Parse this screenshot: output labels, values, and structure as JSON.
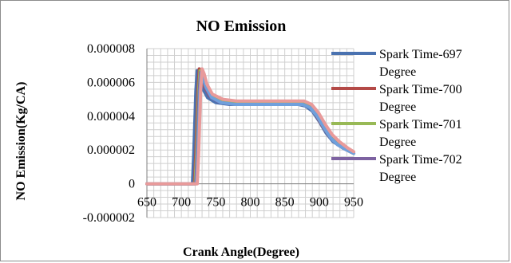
{
  "chart_data": {
    "type": "line",
    "title": "NO Emission",
    "xlabel": "Crank Angle(Degree)",
    "ylabel": "NO Emission(Kg/CA)",
    "xlim": [
      650,
      950
    ],
    "ylim": [
      -2e-06,
      8e-06
    ],
    "x_ticks": [
      "650",
      "700",
      "750",
      "800",
      "850",
      "900",
      "950"
    ],
    "y_ticks": [
      "-0.000002",
      "0",
      "0.000002",
      "0.000004",
      "0.000006",
      "0.000008"
    ],
    "grid": true,
    "legend_position": "right",
    "series": [
      {
        "name": "Spark Time-697 Degree",
        "color": "#4a72b0",
        "points": [
          [
            650,
            0
          ],
          [
            716,
            0
          ],
          [
            718,
            1.8e-06
          ],
          [
            721,
            5.5e-06
          ],
          [
            723,
            6.7e-06
          ],
          [
            726,
            6.3e-06
          ],
          [
            730,
            5.7e-06
          ],
          [
            738,
            5.1e-06
          ],
          [
            750,
            4.8e-06
          ],
          [
            770,
            4.7e-06
          ],
          [
            800,
            4.7e-06
          ],
          [
            840,
            4.7e-06
          ],
          [
            870,
            4.7e-06
          ],
          [
            880,
            4.6e-06
          ],
          [
            890,
            4.3e-06
          ],
          [
            900,
            3.7e-06
          ],
          [
            910,
            3e-06
          ],
          [
            920,
            2.5e-06
          ],
          [
            935,
            2.1e-06
          ],
          [
            950,
            1.8e-06
          ]
        ]
      },
      {
        "name": "Spark Time-700 Degree",
        "color": "#b44a47",
        "points": [
          [
            650,
            0
          ],
          [
            719,
            0
          ],
          [
            721,
            1.8e-06
          ],
          [
            724,
            5.5e-06
          ],
          [
            726,
            6.8e-06
          ],
          [
            729,
            6.4e-06
          ],
          [
            733,
            5.8e-06
          ],
          [
            741,
            5.2e-06
          ],
          [
            755,
            4.9e-06
          ],
          [
            775,
            4.8e-06
          ],
          [
            800,
            4.8e-06
          ],
          [
            840,
            4.8e-06
          ],
          [
            875,
            4.8e-06
          ],
          [
            885,
            4.6e-06
          ],
          [
            895,
            4.1e-06
          ],
          [
            905,
            3.4e-06
          ],
          [
            915,
            2.8e-06
          ],
          [
            925,
            2.4e-06
          ],
          [
            940,
            2e-06
          ],
          [
            950,
            1.8e-06
          ]
        ]
      },
      {
        "name": "Spark Time-701 Degree",
        "color": "#98b956",
        "points": [
          [
            650,
            0
          ],
          [
            720,
            0
          ],
          [
            722,
            1.8e-06
          ],
          [
            725,
            5.5e-06
          ],
          [
            727,
            6.7e-06
          ],
          [
            730,
            6.3e-06
          ],
          [
            734,
            5.8e-06
          ],
          [
            742,
            5.2e-06
          ],
          [
            756,
            4.9e-06
          ],
          [
            776,
            4.8e-06
          ],
          [
            800,
            4.8e-06
          ],
          [
            840,
            4.8e-06
          ],
          [
            875,
            4.8e-06
          ],
          [
            886,
            4.6e-06
          ],
          [
            896,
            4.1e-06
          ],
          [
            906,
            3.4e-06
          ],
          [
            916,
            2.8e-06
          ],
          [
            926,
            2.4e-06
          ],
          [
            940,
            2e-06
          ],
          [
            950,
            1.8e-06
          ]
        ]
      },
      {
        "name": "Spark Time-702 Degree",
        "color": "#7d62a1",
        "points": [
          [
            650,
            0
          ],
          [
            721,
            0
          ],
          [
            723,
            1.8e-06
          ],
          [
            726,
            5.5e-06
          ],
          [
            728,
            6.6e-06
          ],
          [
            731,
            6.2e-06
          ],
          [
            735,
            5.7e-06
          ],
          [
            743,
            5.1e-06
          ],
          [
            757,
            4.8e-06
          ],
          [
            777,
            4.7e-06
          ],
          [
            800,
            4.7e-06
          ],
          [
            840,
            4.7e-06
          ],
          [
            876,
            4.7e-06
          ],
          [
            887,
            4.5e-06
          ],
          [
            897,
            4e-06
          ],
          [
            907,
            3.3e-06
          ],
          [
            917,
            2.7e-06
          ],
          [
            927,
            2.3e-06
          ],
          [
            940,
            2e-06
          ],
          [
            950,
            1.8e-06
          ]
        ]
      },
      {
        "name": "",
        "color": "#6fa0dc",
        "points": [
          [
            650,
            0
          ],
          [
            722,
            0
          ],
          [
            724,
            1.8e-06
          ],
          [
            727,
            5.5e-06
          ],
          [
            729,
            6.6e-06
          ],
          [
            732,
            6.2e-06
          ],
          [
            736,
            5.7e-06
          ],
          [
            744,
            5.1e-06
          ],
          [
            758,
            4.8e-06
          ],
          [
            778,
            4.7e-06
          ],
          [
            800,
            4.7e-06
          ],
          [
            840,
            4.7e-06
          ],
          [
            876,
            4.7e-06
          ],
          [
            887,
            4.5e-06
          ],
          [
            897,
            4e-06
          ],
          [
            907,
            3.3e-06
          ],
          [
            917,
            2.7e-06
          ],
          [
            927,
            2.3e-06
          ],
          [
            940,
            2e-06
          ],
          [
            950,
            1.8e-06
          ]
        ]
      },
      {
        "name": "",
        "color": "#e89a9a",
        "points": [
          [
            650,
            0
          ],
          [
            723,
            0
          ],
          [
            725,
            1.8e-06
          ],
          [
            728,
            5.5e-06
          ],
          [
            730,
            6.8e-06
          ],
          [
            733,
            6.5e-06
          ],
          [
            737,
            5.9e-06
          ],
          [
            745,
            5.3e-06
          ],
          [
            760,
            5e-06
          ],
          [
            780,
            4.9e-06
          ],
          [
            800,
            4.9e-06
          ],
          [
            840,
            4.9e-06
          ],
          [
            878,
            4.9e-06
          ],
          [
            889,
            4.7e-06
          ],
          [
            899,
            4.2e-06
          ],
          [
            909,
            3.5e-06
          ],
          [
            919,
            2.9e-06
          ],
          [
            929,
            2.5e-06
          ],
          [
            942,
            2.1e-06
          ],
          [
            950,
            1.9e-06
          ]
        ]
      }
    ]
  }
}
